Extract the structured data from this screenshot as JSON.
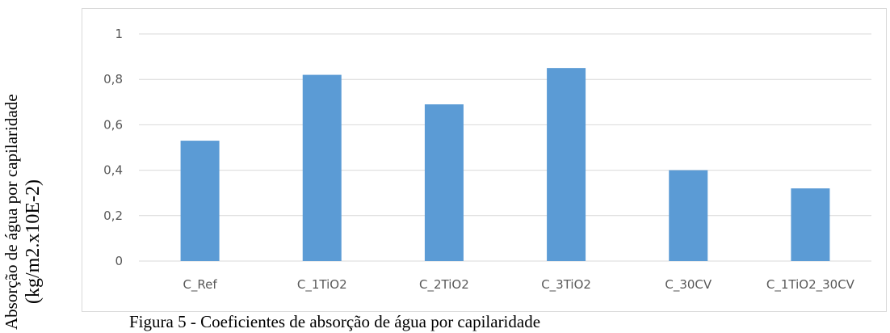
{
  "chart_data": {
    "type": "bar",
    "categories": [
      "C_Ref",
      "C_1TiO2",
      "C_2TiO2",
      "C_3TiO2",
      "C_30CV",
      "C_1TiO2_30CV"
    ],
    "values": [
      0.53,
      0.82,
      0.69,
      0.85,
      0.4,
      0.32
    ],
    "ylabel_line1": "Absorção de água por capilaridade",
    "ylabel_line2": "(kg/m2.x10E-2)",
    "ylim": [
      0,
      1
    ],
    "yticks": [
      0,
      0.2,
      0.4,
      0.6,
      0.8,
      1
    ],
    "ytick_labels": [
      "0",
      "0,2",
      "0,4",
      "0,6",
      "0,8",
      "1"
    ],
    "grid": true,
    "bar_color": "#5b9bd5",
    "grid_color": "#d9d9d9"
  },
  "caption": "Figura 5 - Coeficientes de absorção de água por capilaridade"
}
